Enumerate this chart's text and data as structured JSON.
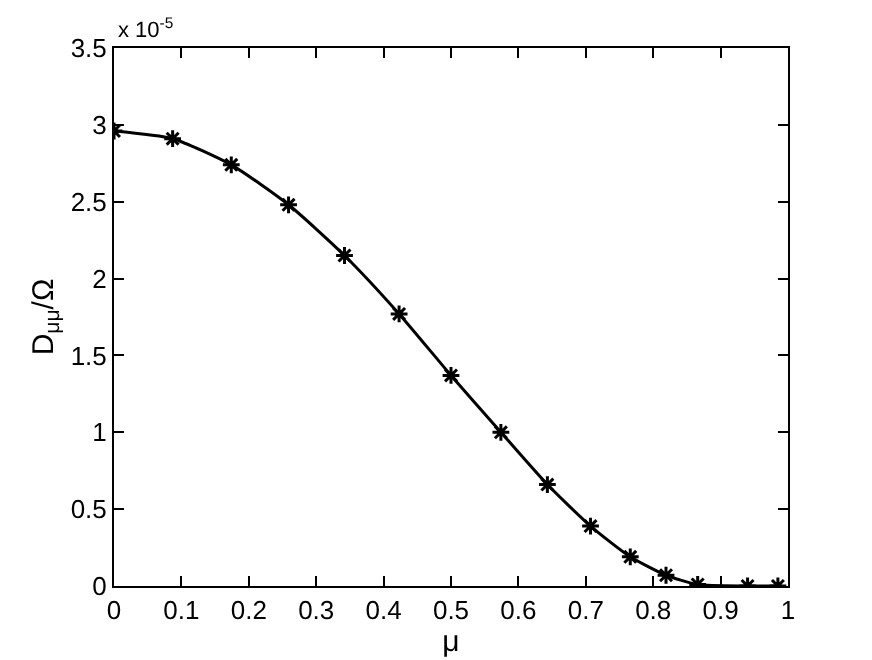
{
  "chart_data": {
    "type": "line",
    "xlabel": "μ",
    "ylabel": "D$_{μμ}$/Ω",
    "annotations": [
      "x 10$^{-5}$"
    ],
    "x": [
      0,
      0.087,
      0.174,
      0.259,
      0.342,
      0.423,
      0.5,
      0.574,
      0.643,
      0.707,
      0.766,
      0.819,
      0.866,
      0.94,
      0.985
    ],
    "series": [
      {
        "color": "#000000",
        "values": [
          2.96,
          2.91,
          2.74,
          2.48,
          2.15,
          1.77,
          1.37,
          1.0,
          0.66,
          0.39,
          0.19,
          0.07,
          0.01,
          0,
          0
        ]
      }
    ],
    "xlim": [
      0,
      1
    ],
    "xticks": [
      0,
      0.1,
      0.2,
      0.3,
      0.4,
      0.5,
      0.6,
      0.7,
      0.8,
      0.9,
      1
    ],
    "ylim": [
      0,
      3.5
    ],
    "yticks": [
      0,
      0.5,
      1,
      1.5,
      2,
      2.5,
      3,
      3.5
    ],
    "grid": false,
    "marker": "cross",
    "line_style": "solid"
  }
}
